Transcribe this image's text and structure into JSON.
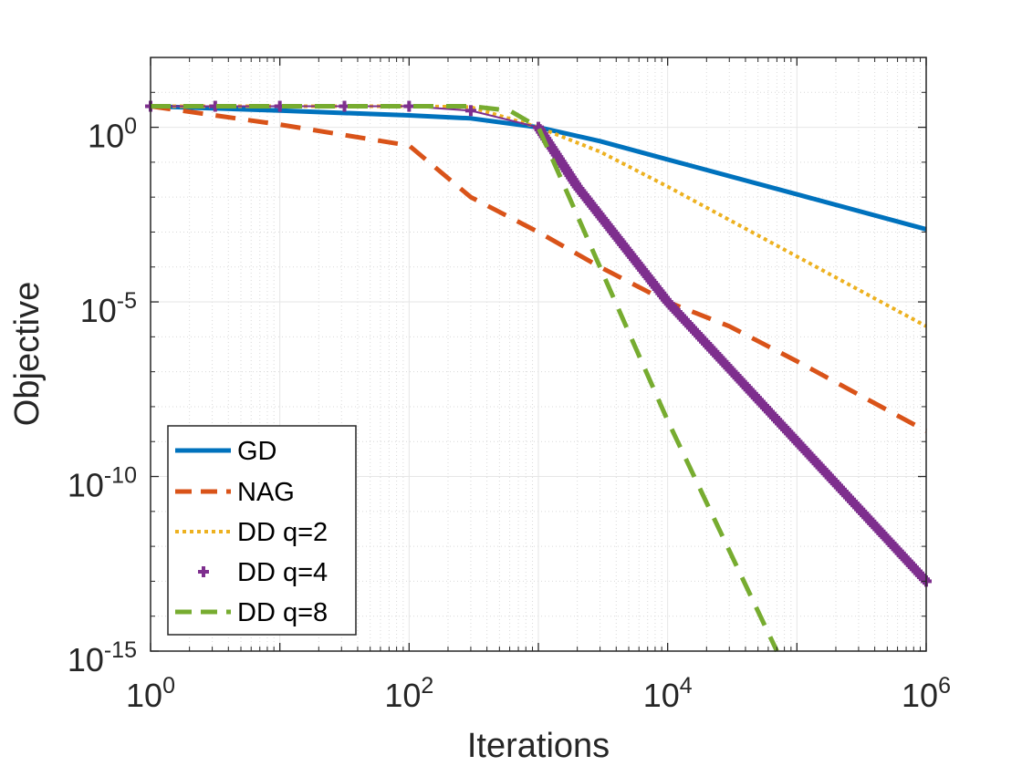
{
  "chart_data": {
    "type": "line",
    "xlabel": "Iterations",
    "ylabel": "Objective",
    "xscale": "log",
    "yscale": "log",
    "xlim": [
      1,
      1000000
    ],
    "ylim": [
      1e-15,
      100
    ],
    "x_ticks": [
      {
        "base": "10",
        "exp": "0",
        "value": 1
      },
      {
        "base": "10",
        "exp": "2",
        "value": 100
      },
      {
        "base": "10",
        "exp": "4",
        "value": 10000
      },
      {
        "base": "10",
        "exp": "6",
        "value": 1000000
      }
    ],
    "y_ticks": [
      {
        "base": "10",
        "exp": "0",
        "value": 1
      },
      {
        "base": "10",
        "exp": "-5",
        "value": 1e-05
      },
      {
        "base": "10",
        "exp": "-10",
        "value": 1e-10
      },
      {
        "base": "10",
        "exp": "-15",
        "value": 1e-15
      }
    ],
    "grid": true,
    "minor_grid": true,
    "legend_position": "bottom-left",
    "series": [
      {
        "name": "GD",
        "color": "#0072BD",
        "style": "solid",
        "x": [
          1,
          10,
          100,
          300,
          1000,
          3000,
          10000,
          100000,
          1000000
        ],
        "y": [
          4,
          3,
          2.2,
          1.8,
          1.0,
          0.4,
          0.12,
          0.012,
          0.0012
        ]
      },
      {
        "name": "NAG",
        "color": "#D95319",
        "style": "dashed",
        "x": [
          1,
          10,
          100,
          300,
          1000,
          3000,
          10000,
          30000,
          100000,
          1000000
        ],
        "y": [
          4,
          1.2,
          0.3,
          0.01,
          0.001,
          0.0001,
          1e-05,
          2e-06,
          2e-07,
          2e-09
        ]
      },
      {
        "name": "DD q=2",
        "color": "#EDB120",
        "style": "dotted",
        "x": [
          1,
          100,
          300,
          1000,
          3000,
          10000,
          100000,
          1000000
        ],
        "y": [
          4,
          4,
          3.8,
          1.0,
          0.2,
          0.02,
          0.0002,
          2e-06
        ]
      },
      {
        "name": "DD q=4",
        "color": "#7E2F8E",
        "style": "plus-markers",
        "x": [
          1,
          100,
          300,
          1000,
          2000,
          10000,
          100000,
          1000000
        ],
        "y": [
          4,
          4,
          3.0,
          1.0,
          0.02,
          1e-05,
          1e-09,
          1e-13
        ]
      },
      {
        "name": "DD q=8",
        "color": "#77AC30",
        "style": "dashed",
        "x": [
          1,
          100,
          300,
          600,
          1000,
          10000,
          70000
        ],
        "y": [
          4,
          4,
          4,
          3.0,
          1.0,
          4e-09,
          1e-15
        ]
      }
    ]
  }
}
